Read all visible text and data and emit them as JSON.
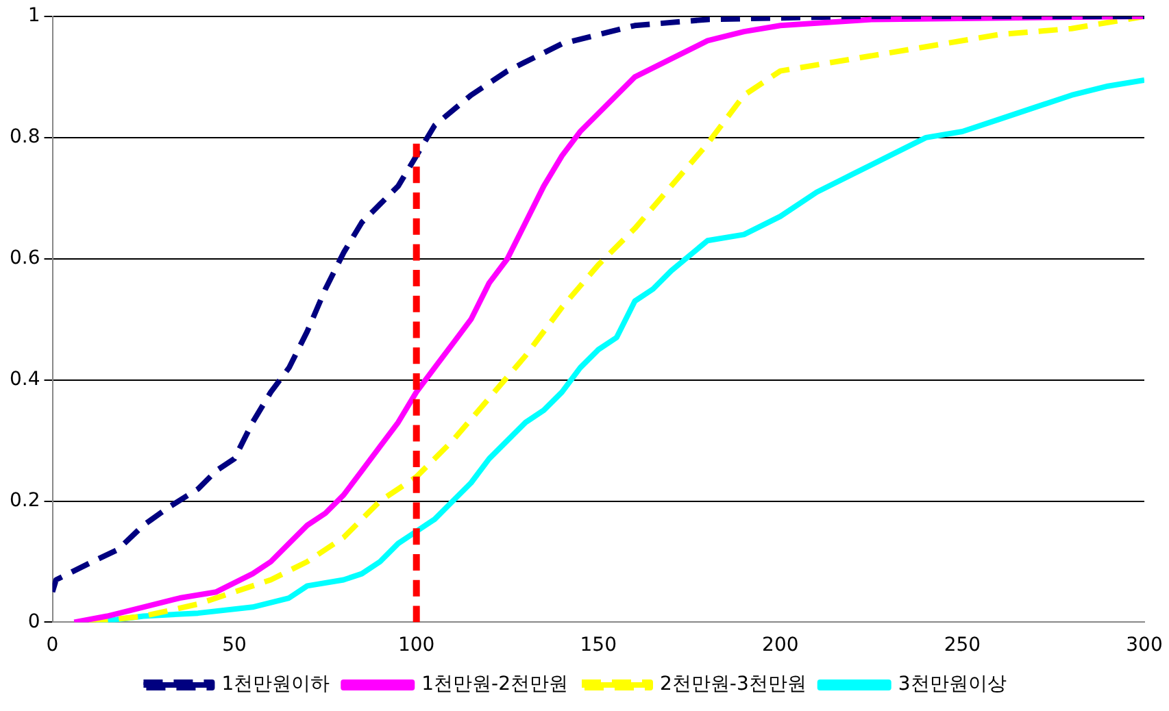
{
  "chart_data": {
    "type": "line",
    "xlim": [
      0,
      300
    ],
    "xticks": [
      0,
      50,
      100,
      150,
      200,
      250,
      300
    ],
    "ylim": [
      0,
      1
    ],
    "yticks": [
      0,
      0.2,
      0.4,
      0.6,
      0.8,
      1
    ],
    "grid": "y",
    "legend": "bottom",
    "marker": "none",
    "series": [
      {
        "name": "1천만원이하",
        "color": "#000080",
        "line_style": "dashed",
        "x": [
          0,
          1,
          11,
          18,
          25,
          32,
          40,
          45,
          50,
          55,
          60,
          65,
          70,
          75,
          80,
          85,
          90,
          95,
          98,
          102,
          105,
          115,
          125,
          140,
          160,
          180,
          220,
          300
        ],
        "values": [
          0.05,
          0.07,
          0.1,
          0.12,
          0.16,
          0.19,
          0.22,
          0.25,
          0.27,
          0.33,
          0.38,
          0.42,
          0.48,
          0.55,
          0.61,
          0.66,
          0.69,
          0.72,
          0.75,
          0.79,
          0.82,
          0.87,
          0.91,
          0.955,
          0.985,
          0.995,
          1,
          1
        ]
      },
      {
        "name": "1천만원-2천만원",
        "color": "#ff00ff",
        "line_style": "solid",
        "x": [
          6,
          15,
          25,
          35,
          45,
          50,
          55,
          60,
          65,
          70,
          75,
          80,
          85,
          90,
          95,
          100,
          105,
          110,
          115,
          120,
          125,
          130,
          135,
          140,
          145,
          150,
          160,
          170,
          180,
          190,
          200,
          225,
          300
        ],
        "values": [
          0,
          0.01,
          0.025,
          0.04,
          0.05,
          0.065,
          0.08,
          0.1,
          0.13,
          0.16,
          0.18,
          0.21,
          0.25,
          0.29,
          0.33,
          0.38,
          0.42,
          0.46,
          0.5,
          0.56,
          0.6,
          0.66,
          0.72,
          0.77,
          0.81,
          0.84,
          0.9,
          0.93,
          0.96,
          0.975,
          0.985,
          0.995,
          1
        ]
      },
      {
        "name": "2천만원-3천만원",
        "color": "#ffff00",
        "line_style": "dashed",
        "x": [
          10,
          25,
          40,
          50,
          60,
          70,
          80,
          90,
          100,
          110,
          120,
          130,
          140,
          150,
          160,
          170,
          180,
          185,
          190,
          200,
          220,
          240,
          260,
          280,
          300
        ],
        "values": [
          0,
          0.01,
          0.03,
          0.05,
          0.07,
          0.1,
          0.14,
          0.2,
          0.24,
          0.3,
          0.37,
          0.44,
          0.52,
          0.59,
          0.65,
          0.72,
          0.79,
          0.83,
          0.87,
          0.91,
          0.93,
          0.95,
          0.97,
          0.98,
          1
        ]
      },
      {
        "name": "3천만원이상",
        "color": "#00ffff",
        "line_style": "solid",
        "x": [
          12,
          25,
          40,
          55,
          65,
          70,
          80,
          85,
          90,
          95,
          100,
          105,
          110,
          115,
          120,
          125,
          130,
          135,
          140,
          145,
          150,
          155,
          160,
          165,
          170,
          180,
          190,
          200,
          210,
          220,
          230,
          240,
          250,
          260,
          270,
          280,
          290,
          300
        ],
        "values": [
          0,
          0.01,
          0.015,
          0.025,
          0.04,
          0.06,
          0.07,
          0.08,
          0.1,
          0.13,
          0.15,
          0.17,
          0.2,
          0.23,
          0.27,
          0.3,
          0.33,
          0.35,
          0.38,
          0.42,
          0.45,
          0.47,
          0.53,
          0.55,
          0.58,
          0.63,
          0.64,
          0.67,
          0.71,
          0.74,
          0.77,
          0.8,
          0.81,
          0.83,
          0.85,
          0.87,
          0.885,
          0.895
        ]
      },
      {
        "color": "#ff0000",
        "line_style": "dashed",
        "x": [
          100,
          100
        ],
        "values": [
          0,
          0.79
        ]
      }
    ]
  }
}
